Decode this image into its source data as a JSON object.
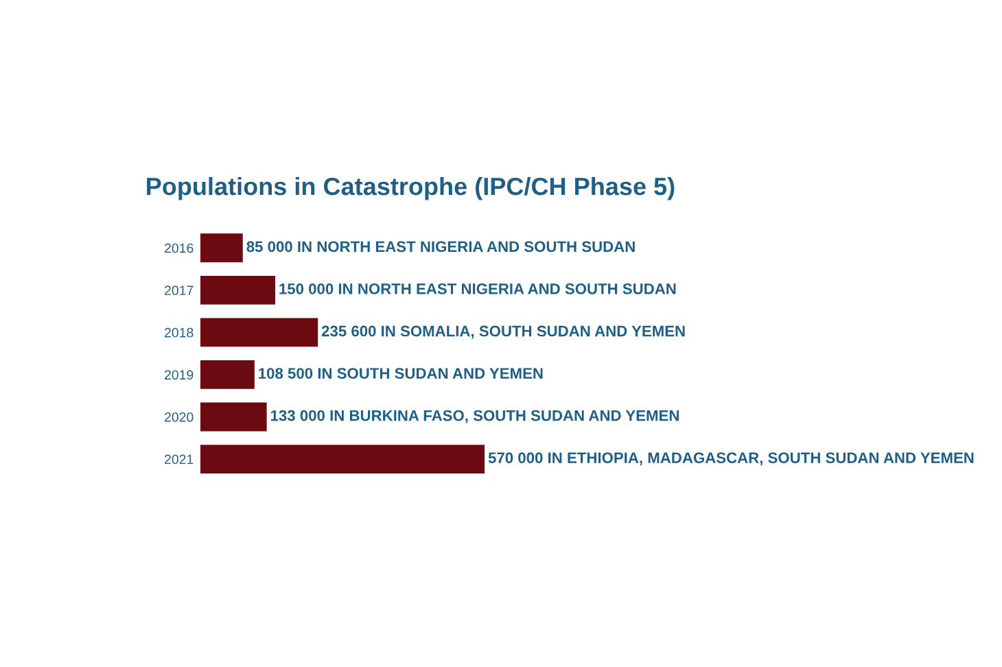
{
  "chart_data": {
    "type": "bar",
    "orientation": "horizontal",
    "title": "Populations in Catastrophe (IPC/CH Phase 5)",
    "categories": [
      "2016",
      "2017",
      "2018",
      "2019",
      "2020",
      "2021"
    ],
    "values": [
      85000,
      150000,
      235600,
      108500,
      133000,
      570000
    ],
    "color": "#6b0a10",
    "value_labels": [
      "85 000 IN NORTH EAST NIGERIA AND SOUTH SUDAN",
      "150 000 IN NORTH EAST NIGERIA AND SOUTH SUDAN",
      "235 600 IN SOMALIA, SOUTH SUDAN AND YEMEN",
      "108 500 IN SOUTH SUDAN AND YEMEN",
      "133 000 IN BURKINA FASO, SOUTH SUDAN AND YEMEN",
      "570 000 IN ETHIOPIA, MADAGASCAR, SOUTH SUDAN AND YEMEN"
    ],
    "grid": false,
    "legend": false
  }
}
